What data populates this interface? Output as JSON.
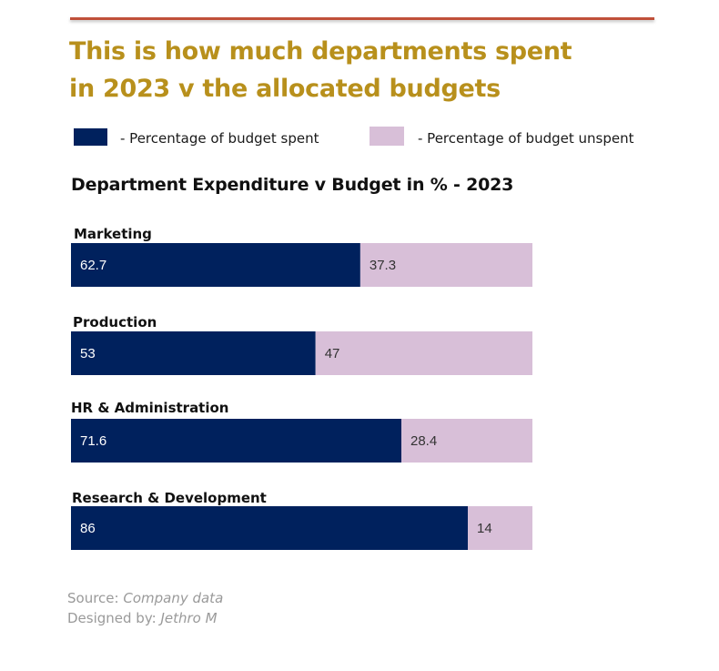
{
  "headline": "This is how much departments spent in 2023 v the allocated budgets",
  "legend": {
    "spent_label": "- Percentage of budget spent",
    "unspent_label": "- Percentage of budget unspent"
  },
  "colors": {
    "spent": "#00215d",
    "unspent": "#d8bfd8",
    "accent_rule": "#c0503a",
    "headline": "#b8901c"
  },
  "chart_data": {
    "type": "bar",
    "orientation": "horizontal",
    "stacked": true,
    "title": "Department Expenditure v Budget in % - 2023",
    "categories": [
      "Marketing",
      "Production",
      "HR & Administration",
      "Research & Development"
    ],
    "series": [
      {
        "name": "Percentage of budget spent",
        "values": [
          62.7,
          53,
          71.6,
          86
        ]
      },
      {
        "name": "Percentage of budget unspent",
        "values": [
          37.3,
          47,
          28.4,
          14
        ]
      }
    ],
    "xlim": [
      0,
      100
    ],
    "grid": false
  },
  "footer": {
    "source_prefix": "Source: ",
    "source_value": "Company data",
    "designer_prefix": "Designed by: ",
    "designer_value": "Jethro M"
  }
}
